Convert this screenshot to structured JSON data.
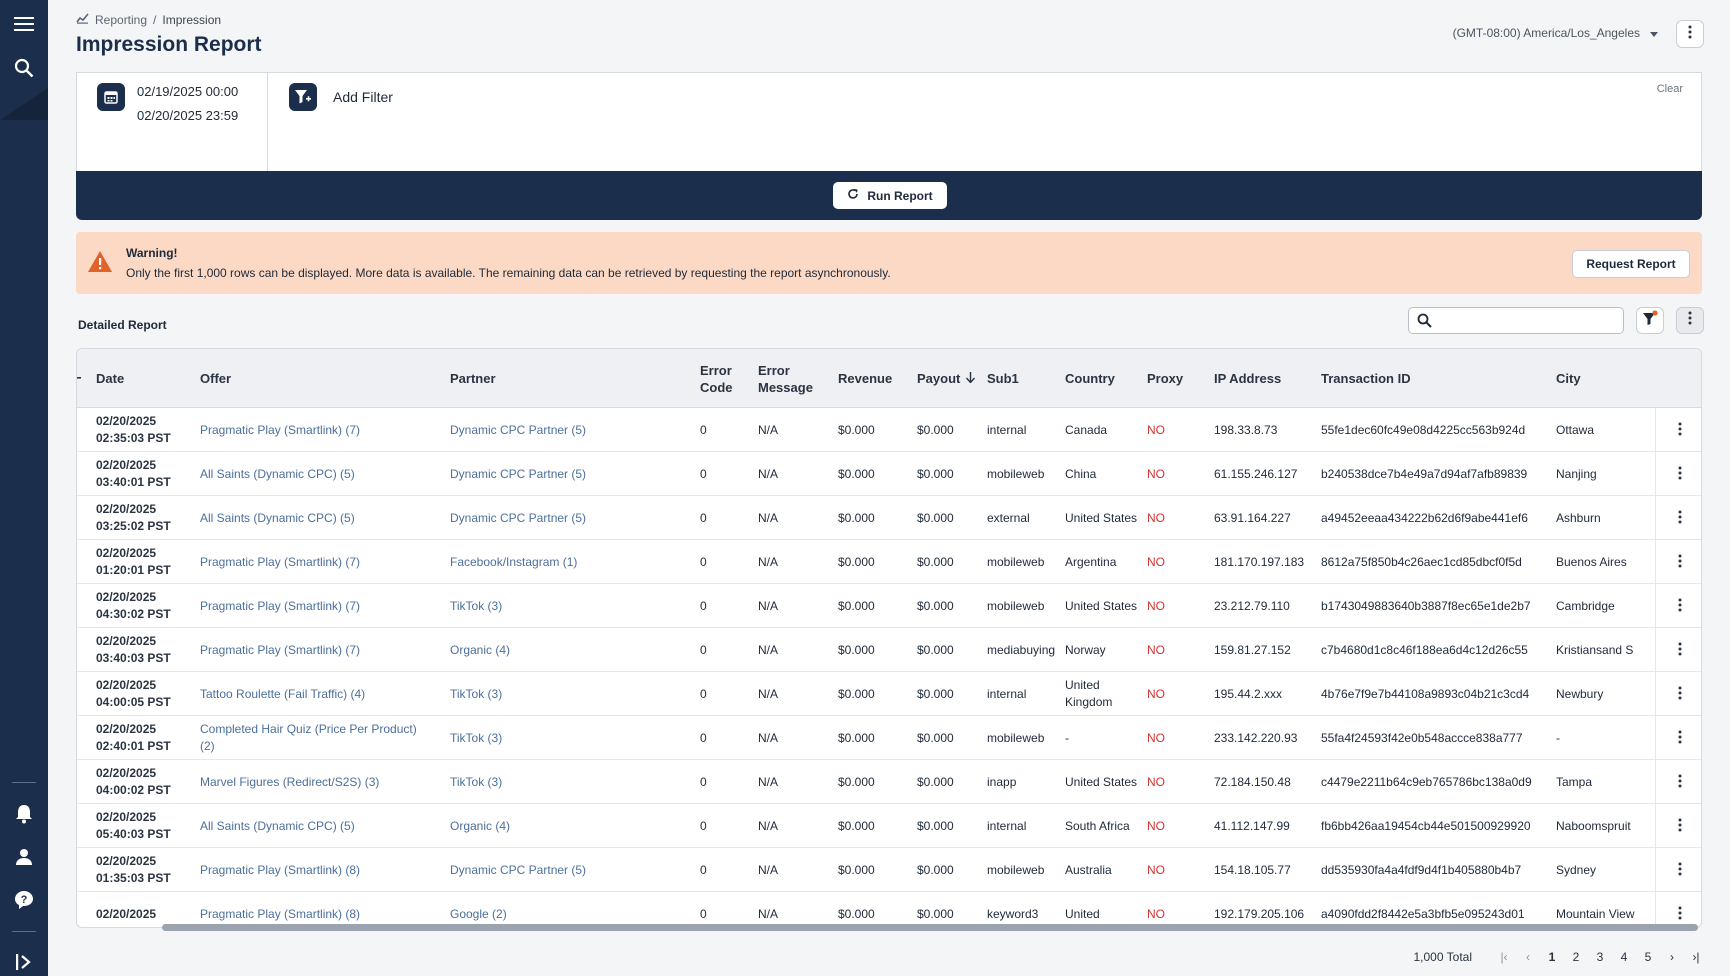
{
  "breadcrumb": {
    "parent": "Reporting",
    "separator": "/",
    "current": "Impression"
  },
  "page_title": "Impression Report",
  "timezone": "(GMT-08:00) America/Los_Angeles",
  "filters": {
    "date_start": "02/19/2025 00:00",
    "date_end": "02/20/2025 23:59",
    "add_filter_label": "Add Filter",
    "clear_label": "Clear",
    "run_label": "Run Report"
  },
  "warning": {
    "title": "Warning!",
    "message": "Only the first 1,000 rows can be displayed. More data is available. The remaining data can be retrieved by requesting the report asynchronously.",
    "button": "Request Report"
  },
  "detailed_label": "Detailed Report",
  "search": {
    "placeholder": "",
    "value": ""
  },
  "table": {
    "headers": {
      "date": "Date",
      "offer": "Offer",
      "partner": "Partner",
      "error_code_1": "Error",
      "error_code_2": "Code",
      "error_message_1": "Error",
      "error_message_2": "Message",
      "revenue": "Revenue",
      "payout": "Payout",
      "sub1": "Sub1",
      "country": "Country",
      "proxy": "Proxy",
      "ip": "IP Address",
      "txn": "Transaction ID",
      "city": "City"
    },
    "rows": [
      {
        "date": "02/20/2025",
        "time": "02:35:03 PST",
        "offer": "Pragmatic Play (Smartlink) (7)",
        "partner": "Dynamic CPC Partner (5)",
        "error_code": "0",
        "error_message": "N/A",
        "revenue": "$0.000",
        "payout": "$0.000",
        "sub1": "internal",
        "country": "Canada",
        "proxy": "NO",
        "ip": "198.33.8.73",
        "txn": "55fe1dec60fc49e08d4225cc563b924d",
        "city": "Ottawa"
      },
      {
        "date": "02/20/2025",
        "time": "03:40:01 PST",
        "offer": "All Saints (Dynamic CPC) (5)",
        "partner": "Dynamic CPC Partner (5)",
        "error_code": "0",
        "error_message": "N/A",
        "revenue": "$0.000",
        "payout": "$0.000",
        "sub1": "mobileweb",
        "country": "China",
        "proxy": "NO",
        "ip": "61.155.246.127",
        "txn": "b240538dce7b4e49a7d94af7afb89839",
        "city": "Nanjing"
      },
      {
        "date": "02/20/2025",
        "time": "03:25:02 PST",
        "offer": "All Saints (Dynamic CPC) (5)",
        "partner": "Dynamic CPC Partner (5)",
        "error_code": "0",
        "error_message": "N/A",
        "revenue": "$0.000",
        "payout": "$0.000",
        "sub1": "external",
        "country": "United States",
        "proxy": "NO",
        "ip": "63.91.164.227",
        "txn": "a49452eeaa434222b62d6f9abe441ef6",
        "city": "Ashburn"
      },
      {
        "date": "02/20/2025",
        "time": "01:20:01 PST",
        "offer": "Pragmatic Play (Smartlink) (7)",
        "partner": "Facebook/Instagram (1)",
        "error_code": "0",
        "error_message": "N/A",
        "revenue": "$0.000",
        "payout": "$0.000",
        "sub1": "mobileweb",
        "country": "Argentina",
        "proxy": "NO",
        "ip": "181.170.197.183",
        "txn": "8612a75f850b4c26aec1cd85dbcf0f5d",
        "city": "Buenos Aires"
      },
      {
        "date": "02/20/2025",
        "time": "04:30:02 PST",
        "offer": "Pragmatic Play (Smartlink) (7)",
        "partner": "TikTok (3)",
        "error_code": "0",
        "error_message": "N/A",
        "revenue": "$0.000",
        "payout": "$0.000",
        "sub1": "mobileweb",
        "country": "United States",
        "proxy": "NO",
        "ip": "23.212.79.110",
        "txn": "b1743049883640b3887f8ec65e1de2b7",
        "city": "Cambridge"
      },
      {
        "date": "02/20/2025",
        "time": "03:40:03 PST",
        "offer": "Pragmatic Play (Smartlink) (7)",
        "partner": "Organic (4)",
        "error_code": "0",
        "error_message": "N/A",
        "revenue": "$0.000",
        "payout": "$0.000",
        "sub1": "mediabuying",
        "country": "Norway",
        "proxy": "NO",
        "ip": "159.81.27.152",
        "txn": "c7b4680d1c8c46f188ea6d4c12d26c55",
        "city": "Kristiansand S"
      },
      {
        "date": "02/20/2025",
        "time": "04:00:05 PST",
        "offer": "Tattoo Roulette (Fail Traffic) (4)",
        "partner": "TikTok (3)",
        "error_code": "0",
        "error_message": "N/A",
        "revenue": "$0.000",
        "payout": "$0.000",
        "sub1": "internal",
        "country": "United Kingdom",
        "proxy": "NO",
        "ip": "195.44.2.xxx",
        "txn": "4b76e7f9e7b44108a9893c04b21c3cd4",
        "city": "Newbury"
      },
      {
        "date": "02/20/2025",
        "time": "02:40:01 PST",
        "offer": "Completed Hair Quiz (Price Per Product) (2)",
        "partner": "TikTok (3)",
        "error_code": "0",
        "error_message": "N/A",
        "revenue": "$0.000",
        "payout": "$0.000",
        "sub1": "mobileweb",
        "country": "-",
        "proxy": "NO",
        "ip": "233.142.220.93",
        "txn": "55fa4f24593f42e0b548accce838a777",
        "city": "-"
      },
      {
        "date": "02/20/2025",
        "time": "04:00:02 PST",
        "offer": "Marvel Figures (Redirect/S2S) (3)",
        "partner": "TikTok (3)",
        "error_code": "0",
        "error_message": "N/A",
        "revenue": "$0.000",
        "payout": "$0.000",
        "sub1": "inapp",
        "country": "United States",
        "proxy": "NO",
        "ip": "72.184.150.48",
        "txn": "c4479e2211b64c9eb765786bc138a0d9",
        "city": "Tampa"
      },
      {
        "date": "02/20/2025",
        "time": "05:40:03 PST",
        "offer": "All Saints (Dynamic CPC) (5)",
        "partner": "Organic (4)",
        "error_code": "0",
        "error_message": "N/A",
        "revenue": "$0.000",
        "payout": "$0.000",
        "sub1": "internal",
        "country": "South Africa",
        "proxy": "NO",
        "ip": "41.112.147.99",
        "txn": "fb6bb426aa19454cb44e501500929920",
        "city": "Naboomspruit"
      },
      {
        "date": "02/20/2025",
        "time": "01:35:03 PST",
        "offer": "Pragmatic Play (Smartlink) (8)",
        "partner": "Dynamic CPC Partner (5)",
        "error_code": "0",
        "error_message": "N/A",
        "revenue": "$0.000",
        "payout": "$0.000",
        "sub1": "mobileweb",
        "country": "Australia",
        "proxy": "NO",
        "ip": "154.18.105.77",
        "txn": "dd535930fa4a4fdf9d4f1b405880b4b7",
        "city": "Sydney"
      },
      {
        "date": "02/20/2025",
        "time": "",
        "offer": "Pragmatic Play (Smartlink) (8)",
        "partner": "Google (2)",
        "error_code": "0",
        "error_message": "N/A",
        "revenue": "$0.000",
        "payout": "$0.000",
        "sub1": "keyword3",
        "country": "United",
        "proxy": "NO",
        "ip": "192.179.205.106",
        "txn": "a4090fdd2f8442e5a3bfb5e095243d01",
        "city": "Mountain View"
      }
    ]
  },
  "pagination": {
    "total": "1,000 Total",
    "pages": [
      "1",
      "2",
      "3",
      "4",
      "5"
    ],
    "active_page": "1"
  },
  "icons": {
    "menu": "hamburger-icon",
    "search": "search-icon",
    "bell": "bell-icon",
    "user": "user-icon",
    "help": "help-icon",
    "expand": "expand-sidebar-icon",
    "calendar": "calendar-icon",
    "add_filter": "filter-plus-icon",
    "refresh": "refresh-icon",
    "warning": "warning-icon",
    "filter": "filter-icon",
    "kebab": "kebab-icon",
    "sort": "sort-down-icon"
  },
  "colors": {
    "navy": "#1b2e4b",
    "link": "#4c6f9c",
    "warning_bg": "#fbd9c4",
    "no_red": "#d0342c",
    "warning_orange": "#e0632b"
  }
}
